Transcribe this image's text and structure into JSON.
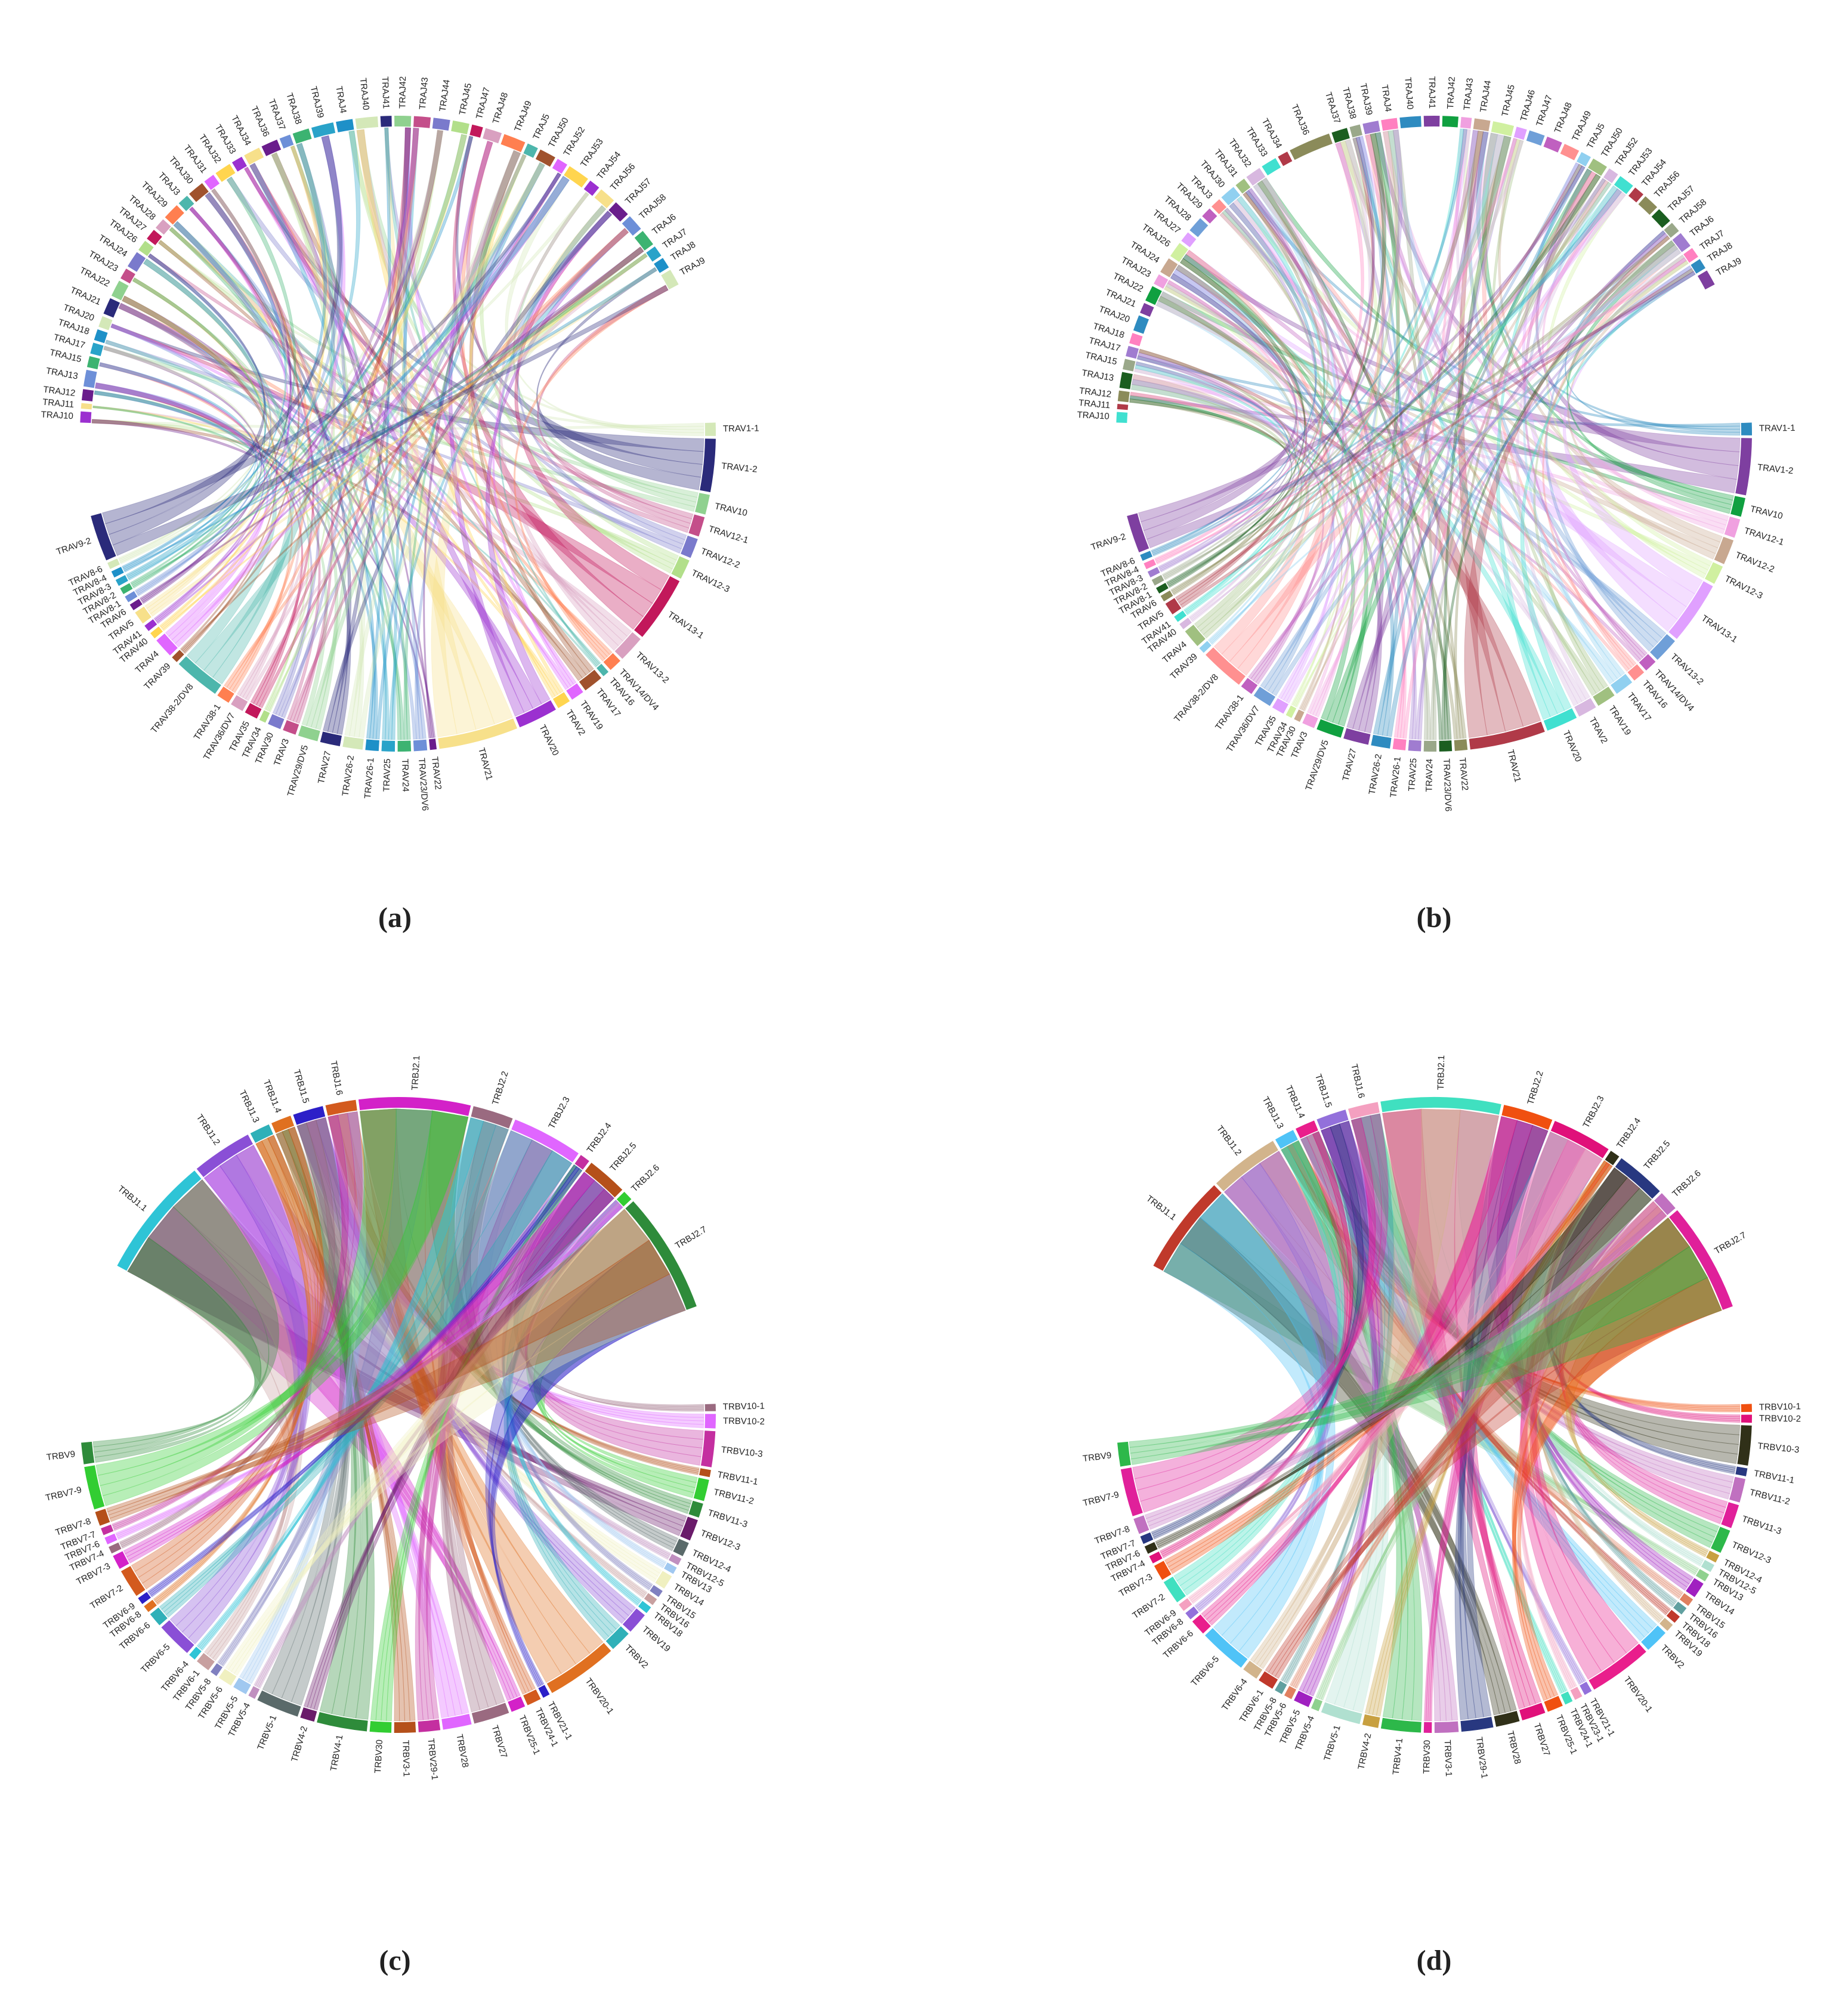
{
  "chart_data": [
    {
      "type": "chord",
      "caption": "(a)",
      "palette": [
        "#9b30d0",
        "#f7e08a",
        "#6a1d8c",
        "#6d8fd8",
        "#3cb371",
        "#29a3c9",
        "#1e90c8",
        "#d4e8b8",
        "#2a2a7a",
        "#8fd18f",
        "#c44e8a",
        "#7a7acc",
        "#b2df8a",
        "#c2185b",
        "#d9a0c0",
        "#ff7f50",
        "#4db6ac",
        "#a0522d",
        "#e066ff",
        "#ffd54f"
      ],
      "sectors": [
        {
          "categories": [
            "TRAJ10",
            "TRAJ11",
            "TRAJ12",
            "TRAJ13",
            "TRAJ15",
            "TRAJ17",
            "TRAJ18",
            "TRAJ20",
            "TRAJ21",
            "TRAJ22",
            "TRAJ23",
            "TRAJ24",
            "TRAJ26",
            "TRAJ27",
            "TRAJ28",
            "TRAJ29",
            "TRAJ3",
            "TRAJ30",
            "TRAJ31",
            "TRAJ32",
            "TRAJ33",
            "TRAJ34",
            "TRAJ36",
            "TRAJ37",
            "TRAJ38",
            "TRAJ39",
            "TRAJ4",
            "TRAJ40",
            "TRAJ41",
            "TRAJ42",
            "TRAJ43",
            "TRAJ44",
            "TRAJ45",
            "TRAJ47",
            "TRAJ48",
            "TRAJ49",
            "TRAJ5",
            "TRAJ50",
            "TRAJ52",
            "TRAJ53",
            "TRAJ54",
            "TRAJ56",
            "TRAJ57",
            "TRAJ58",
            "TRAJ6",
            "TRAJ7",
            "TRAJ8",
            "TRAJ9"
          ],
          "values": [
            2,
            1,
            2,
            3,
            2,
            2,
            2,
            2,
            3,
            3,
            2,
            3,
            2,
            2,
            2,
            3,
            2,
            3,
            2,
            3,
            2,
            3,
            3,
            2,
            3,
            4,
            3,
            4,
            2,
            3,
            3,
            3,
            3,
            2,
            3,
            4,
            2,
            3,
            2,
            4,
            2,
            3,
            3,
            3,
            3,
            2,
            2,
            3
          ]
        },
        {
          "categories": [
            "TRAV1-1",
            "TRAV1-2",
            "TRAV10",
            "TRAV12-1",
            "TRAV12-2",
            "TRAV12-3",
            "TRAV13-1",
            "TRAV13-2",
            "TRAV14/DV4",
            "TRAV16",
            "TRAV17",
            "TRAV19",
            "TRAV2",
            "TRAV20",
            "TRAV21",
            "TRAV22",
            "TRAV23/DV6",
            "TRAV24",
            "TRAV25",
            "TRAV26-1",
            "TRAV26-2",
            "TRAV27",
            "TRAV29/DV5",
            "TRAV3",
            "TRAV30",
            "TRAV34",
            "TRAV35",
            "TRAV36/DV7",
            "TRAV38-1",
            "TRAV38-2/DV8",
            "TRAV39",
            "TRAV4",
            "TRAV40",
            "TRAV41",
            "TRAV5",
            "TRAV6",
            "TRAV8-1",
            "TRAV8-2",
            "TRAV8-3",
            "TRAV8-4",
            "TRAV8-6",
            "TRAV9-2"
          ],
          "values": [
            2,
            8,
            3,
            3,
            3,
            3,
            10,
            4,
            2,
            1,
            3,
            2,
            2,
            6,
            12,
            1,
            2,
            2,
            2,
            2,
            3,
            3,
            3,
            2,
            2,
            1,
            2,
            2,
            2,
            7,
            1,
            3,
            1,
            1,
            2,
            1,
            1,
            1,
            1,
            1,
            1,
            7
          ]
        }
      ]
    },
    {
      "type": "chord",
      "caption": "(b)",
      "palette": [
        "#40e0d0",
        "#b03a48",
        "#8b8b5a",
        "#1b5e20",
        "#9aa88a",
        "#a07cd0",
        "#ff80c0",
        "#2e8bc0",
        "#7e3fa0",
        "#10a040",
        "#f0a0e0",
        "#c8a890",
        "#d0f0a0",
        "#e0a0ff",
        "#6f9fd8",
        "#c060c0",
        "#ff9090",
        "#90d0f0",
        "#a0c080",
        "#d8b8e0"
      ],
      "sectors": [
        {
          "categories": [
            "TRAJ10",
            "TRAJ11",
            "TRAJ12",
            "TRAJ13",
            "TRAJ15",
            "TRAJ17",
            "TRAJ18",
            "TRAJ20",
            "TRAJ21",
            "TRAJ22",
            "TRAJ23",
            "TRAJ24",
            "TRAJ26",
            "TRAJ27",
            "TRAJ28",
            "TRAJ29",
            "TRAJ3",
            "TRAJ30",
            "TRAJ31",
            "TRAJ32",
            "TRAJ33",
            "TRAJ34",
            "TRAJ36",
            "TRAJ37",
            "TRAJ38",
            "TRAJ39",
            "TRAJ4",
            "TRAJ40",
            "TRAJ41",
            "TRAJ42",
            "TRAJ43",
            "TRAJ44",
            "TRAJ45",
            "TRAJ46",
            "TRAJ47",
            "TRAJ48",
            "TRAJ49",
            "TRAJ5",
            "TRAJ50",
            "TRAJ52",
            "TRAJ53",
            "TRAJ54",
            "TRAJ56",
            "TRAJ57",
            "TRAJ58",
            "TRAJ6",
            "TRAJ7",
            "TRAJ8",
            "TRAJ9"
          ],
          "values": [
            2,
            1,
            2,
            3,
            2,
            2,
            2,
            3,
            2,
            3,
            2,
            3,
            3,
            2,
            3,
            2,
            2,
            3,
            2,
            3,
            3,
            2,
            8,
            3,
            2,
            3,
            3,
            4,
            3,
            3,
            2,
            3,
            4,
            2,
            3,
            3,
            3,
            2,
            3,
            2,
            3,
            2,
            3,
            3,
            2,
            3,
            2,
            2,
            3
          ]
        },
        {
          "categories": [
            "TRAV1-1",
            "TRAV1-2",
            "TRAV10",
            "TRAV12-1",
            "TRAV12-2",
            "TRAV12-3",
            "TRAV13-1",
            "TRAV13-2",
            "TRAV14/DV4",
            "TRAV16",
            "TRAV17",
            "TRAV19",
            "TRAV2",
            "TRAV20",
            "TRAV21",
            "TRAV22",
            "TRAV23/DV6",
            "TRAV24",
            "TRAV25",
            "TRAV26-1",
            "TRAV26-2",
            "TRAV27",
            "TRAV29/DV5",
            "TRAV3",
            "TRAV30",
            "TRAV34",
            "TRAV35",
            "TRAV36/DV7",
            "TRAV38-1",
            "TRAV38-2/DV8",
            "TRAV39",
            "TRAV4",
            "TRAV40",
            "TRAV41",
            "TRAV5",
            "TRAV6",
            "TRAV8-1",
            "TRAV8-2",
            "TRAV8-3",
            "TRAV8-4",
            "TRAV8-6",
            "TRAV9-2"
          ],
          "values": [
            2,
            9,
            3,
            3,
            4,
            3,
            10,
            4,
            2,
            2,
            3,
            3,
            3,
            5,
            12,
            2,
            2,
            2,
            2,
            2,
            3,
            4,
            4,
            2,
            1,
            1,
            2,
            3,
            2,
            7,
            1,
            3,
            1,
            1,
            2,
            1,
            1,
            1,
            1,
            1,
            1,
            6
          ]
        }
      ]
    },
    {
      "type": "chord",
      "caption": "(c)",
      "palette": [
        "#2ec4d6",
        "#8a4fd6",
        "#2fb0b8",
        "#e07020",
        "#2c1fc8",
        "#d35a1e",
        "#d321c8",
        "#9a6a80",
        "#e066ff",
        "#c42fa0",
        "#b5501a",
        "#32cd32",
        "#2e8b3a",
        "#6a1b6a",
        "#5a6a6a",
        "#c090c0",
        "#a0c8f0",
        "#f0f0c0",
        "#8080c0",
        "#c8a0a0"
      ],
      "sectors": [
        {
          "categories": [
            "TRBJ1.1",
            "TRBJ1.2",
            "TRBJ1.3",
            "TRBJ1.4",
            "TRBJ1.5",
            "TRBJ1.6",
            "TRBJ2.1",
            "TRBJ2.2",
            "TRBJ2.3",
            "TRBJ2.4",
            "TRBJ2.5",
            "TRBJ2.6",
            "TRBJ2.7"
          ],
          "values": [
            12,
            6,
            2,
            2,
            3,
            3,
            11,
            4,
            7,
            1,
            4,
            1,
            12
          ]
        },
        {
          "categories": [
            "TRBV10-1",
            "TRBV10-2",
            "TRBV10-3",
            "TRBV11-1",
            "TRBV11-2",
            "TRBV11-3",
            "TRBV12-3",
            "TRBV12-4",
            "TRBV12-5",
            "TRBV13",
            "TRBV14",
            "TRBV15",
            "TRBV16",
            "TRBV18",
            "TRBV19",
            "TRBV2",
            "TRBV20-1",
            "TRBV21-1",
            "TRBV24-1",
            "TRBV25-1",
            "TRBV27",
            "TRBV28",
            "TRBV29-1",
            "TRBV3-1",
            "TRBV30",
            "TRBV4-1",
            "TRBV4-2",
            "TRBV5-1",
            "TRBV5-4",
            "TRBV5-5",
            "TRBV5-6",
            "TRBV5-8",
            "TRBV6-1",
            "TRBV6-4",
            "TRBV6-5",
            "TRBV6-6",
            "TRBV6-8",
            "TRBV6-9",
            "TRBV7-2",
            "TRBV7-3",
            "TRBV7-4",
            "TRBV7-6",
            "TRBV7-7",
            "TRBV7-8",
            "TRBV7-9",
            "TRBV9"
          ],
          "values": [
            1,
            2,
            5,
            1,
            3,
            2,
            3,
            2,
            1,
            1,
            2,
            1,
            1,
            1,
            3,
            3,
            10,
            1,
            2,
            2,
            5,
            4,
            3,
            3,
            3,
            7,
            2,
            6,
            1,
            2,
            2,
            1,
            2,
            1,
            5,
            2,
            1,
            1,
            4,
            2,
            1,
            1,
            1,
            2,
            6,
            3
          ]
        }
      ]
    },
    {
      "type": "chord",
      "caption": "(d)",
      "palette": [
        "#c0392b",
        "#d2b48c",
        "#4fc3f7",
        "#e91e8c",
        "#9370db",
        "#f4a0c0",
        "#40e0c0",
        "#f05010",
        "#e0107a",
        "#303018",
        "#283880",
        "#c070c0",
        "#e0209a",
        "#2db84a",
        "#c8a040",
        "#b0e0d0",
        "#8fd18f",
        "#a020c0",
        "#e08060",
        "#60a0a0"
      ],
      "sectors": [
        {
          "categories": [
            "TRBJ1.1",
            "TRBJ1.2",
            "TRBJ1.3",
            "TRBJ1.4",
            "TRBJ1.5",
            "TRBJ1.6",
            "TRBJ2.1",
            "TRBJ2.2",
            "TRBJ2.3",
            "TRBJ2.4",
            "TRBJ2.5",
            "TRBJ2.6",
            "TRBJ2.7"
          ],
          "values": [
            10,
            7,
            2,
            2,
            3,
            3,
            12,
            5,
            6,
            1,
            5,
            2,
            11
          ]
        },
        {
          "categories": [
            "TRBV10-1",
            "TRBV10-2",
            "TRBV10-3",
            "TRBV11-1",
            "TRBV11-2",
            "TRBV11-3",
            "TRBV12-3",
            "TRBV12-4",
            "TRBV12-5",
            "TRBV13",
            "TRBV14",
            "TRBV15",
            "TRBV16",
            "TRBV18",
            "TRBV19",
            "TRBV2",
            "TRBV20-1",
            "TRBV21-1",
            "TRBV23-1",
            "TRBV24-1",
            "TRBV25-1",
            "TRBV27",
            "TRBV28",
            "TRBV29-1",
            "TRBV3-1",
            "TRBV30",
            "TRBV4-1",
            "TRBV4-2",
            "TRBV5-1",
            "TRBV5-4",
            "TRBV5-5",
            "TRBV5-6",
            "TRBV5-8",
            "TRBV6-1",
            "TRBV6-4",
            "TRBV6-5",
            "TRBV6-6",
            "TRBV6-8",
            "TRBV6-9",
            "TRBV7-2",
            "TRBV7-3",
            "TRBV7-4",
            "TRBV7-6",
            "TRBV7-7",
            "TRBV7-8",
            "TRBV7-9",
            "TRBV9"
          ],
          "values": [
            1,
            1,
            5,
            1,
            3,
            3,
            3,
            1,
            1,
            1,
            2,
            1,
            1,
            1,
            1,
            3,
            8,
            1,
            1,
            1,
            2,
            3,
            3,
            4,
            3,
            1,
            5,
            2,
            5,
            1,
            2,
            1,
            1,
            2,
            2,
            6,
            2,
            1,
            1,
            3,
            2,
            1,
            1,
            1,
            2,
            6,
            3
          ]
        }
      ]
    }
  ]
}
